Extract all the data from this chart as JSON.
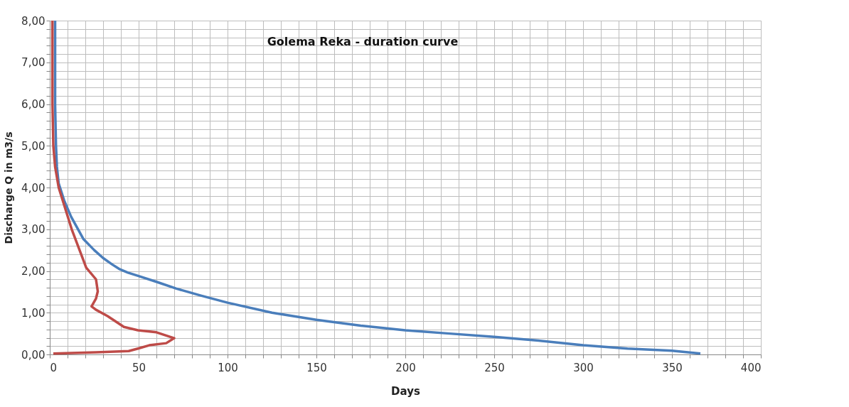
{
  "chart_data": {
    "type": "line",
    "title": "Golema Reka - duration curve",
    "xlabel": "Days",
    "ylabel": "Discharge Q in m3/s",
    "xlim": [
      0,
      400
    ],
    "ylim": [
      0,
      8
    ],
    "xticks": [
      0,
      {
        "value": 10,
        "label": null
      },
      {
        "value": 20,
        "label": null
      },
      {
        "value": 30,
        "label": null
      },
      {
        "value": 40,
        "label": null
      },
      50,
      {
        "value": 60,
        "label": null
      },
      {
        "value": 70,
        "label": null
      },
      {
        "value": 80,
        "label": null
      },
      {
        "value": 90,
        "label": null
      },
      100,
      {
        "value": 110,
        "label": null
      },
      {
        "value": 120,
        "label": null
      },
      {
        "value": 130,
        "label": null
      },
      {
        "value": 140,
        "label": null
      },
      150,
      {
        "value": 160,
        "label": null
      },
      {
        "value": 170,
        "label": null
      },
      {
        "value": 180,
        "label": null
      },
      {
        "value": 190,
        "label": null
      },
      200,
      {
        "value": 210,
        "label": null
      },
      {
        "value": 220,
        "label": null
      },
      {
        "value": 230,
        "label": null
      },
      {
        "value": 240,
        "label": null
      },
      250,
      {
        "value": 260,
        "label": null
      },
      {
        "value": 270,
        "label": null
      },
      {
        "value": 280,
        "label": null
      },
      {
        "value": 290,
        "label": null
      },
      300,
      {
        "value": 310,
        "label": null
      },
      {
        "value": 320,
        "label": null
      },
      {
        "value": 330,
        "label": null
      },
      {
        "value": 340,
        "label": null
      },
      350,
      {
        "value": 360,
        "label": null
      },
      {
        "value": 370,
        "label": null
      },
      {
        "value": 380,
        "label": null
      },
      {
        "value": 390,
        "label": null
      },
      400
    ],
    "yticks": [
      {
        "value": 0,
        "label": "0,00"
      },
      {
        "value": 0.2,
        "label": null
      },
      {
        "value": 0.4,
        "label": null
      },
      {
        "value": 0.6,
        "label": null
      },
      {
        "value": 0.8,
        "label": null
      },
      {
        "value": 1,
        "label": "1,00"
      },
      {
        "value": 1.2,
        "label": null
      },
      {
        "value": 1.4,
        "label": null
      },
      {
        "value": 1.6,
        "label": null
      },
      {
        "value": 1.8,
        "label": null
      },
      {
        "value": 2,
        "label": "2,00"
      },
      {
        "value": 2.2,
        "label": null
      },
      {
        "value": 2.4,
        "label": null
      },
      {
        "value": 2.6,
        "label": null
      },
      {
        "value": 2.8,
        "label": null
      },
      {
        "value": 3,
        "label": "3,00"
      },
      {
        "value": 3.2,
        "label": null
      },
      {
        "value": 3.4,
        "label": null
      },
      {
        "value": 3.6,
        "label": null
      },
      {
        "value": 3.8,
        "label": null
      },
      {
        "value": 4,
        "label": "4,00"
      },
      {
        "value": 4.2,
        "label": null
      },
      {
        "value": 4.4,
        "label": null
      },
      {
        "value": 4.6,
        "label": null
      },
      {
        "value": 4.8,
        "label": null
      },
      {
        "value": 5,
        "label": "5,00"
      },
      {
        "value": 5.2,
        "label": null
      },
      {
        "value": 5.4,
        "label": null
      },
      {
        "value": 5.6,
        "label": null
      },
      {
        "value": 5.8,
        "label": null
      },
      {
        "value": 6,
        "label": "6,00"
      },
      {
        "value": 6.2,
        "label": null
      },
      {
        "value": 6.4,
        "label": null
      },
      {
        "value": 6.6,
        "label": null
      },
      {
        "value": 6.8,
        "label": null
      },
      {
        "value": 7,
        "label": "7,00"
      },
      {
        "value": 7.2,
        "label": null
      },
      {
        "value": 7.4,
        "label": null
      },
      {
        "value": 7.6,
        "label": null
      },
      {
        "value": 7.8,
        "label": null
      },
      {
        "value": 8,
        "label": "8,00"
      }
    ],
    "grid": true,
    "legend": false,
    "line_style": "solid",
    "marker": "none",
    "series": [
      {
        "color": "#4a7ebb",
        "x": [
          3,
          3,
          3.5,
          4,
          5,
          8,
          12,
          19,
          25,
          30,
          35,
          39,
          44,
          50,
          60,
          71,
          85,
          100,
          125,
          150,
          175,
          200,
          225,
          250,
          275,
          300,
          325,
          350,
          366
        ],
        "values": [
          8,
          6,
          5,
          4.5,
          4.1,
          3.7,
          3.3,
          2.76,
          2.5,
          2.31,
          2.16,
          2.05,
          1.96,
          1.88,
          1.74,
          1.58,
          1.41,
          1.24,
          1.0,
          0.83,
          0.69,
          0.58,
          0.5,
          0.42,
          0.33,
          0.22,
          0.14,
          0.09,
          0.02
        ]
      },
      {
        "color": "#be4b48",
        "x": [
          1.5,
          1.5,
          2,
          3,
          5,
          12.5,
          20.5,
          26,
          27,
          26,
          23.5,
          26,
          32.5,
          41.7,
          49.6,
          60,
          70,
          65.5,
          56,
          49.6,
          44.4,
          26,
          2
        ],
        "values": [
          8,
          6,
          5,
          4.5,
          4.0,
          2.98,
          2.08,
          1.8,
          1.51,
          1.34,
          1.15,
          1.07,
          0.92,
          0.66,
          0.58,
          0.53,
          0.39,
          0.27,
          0.22,
          0.14,
          0.08,
          0.05,
          0.02
        ]
      }
    ]
  }
}
